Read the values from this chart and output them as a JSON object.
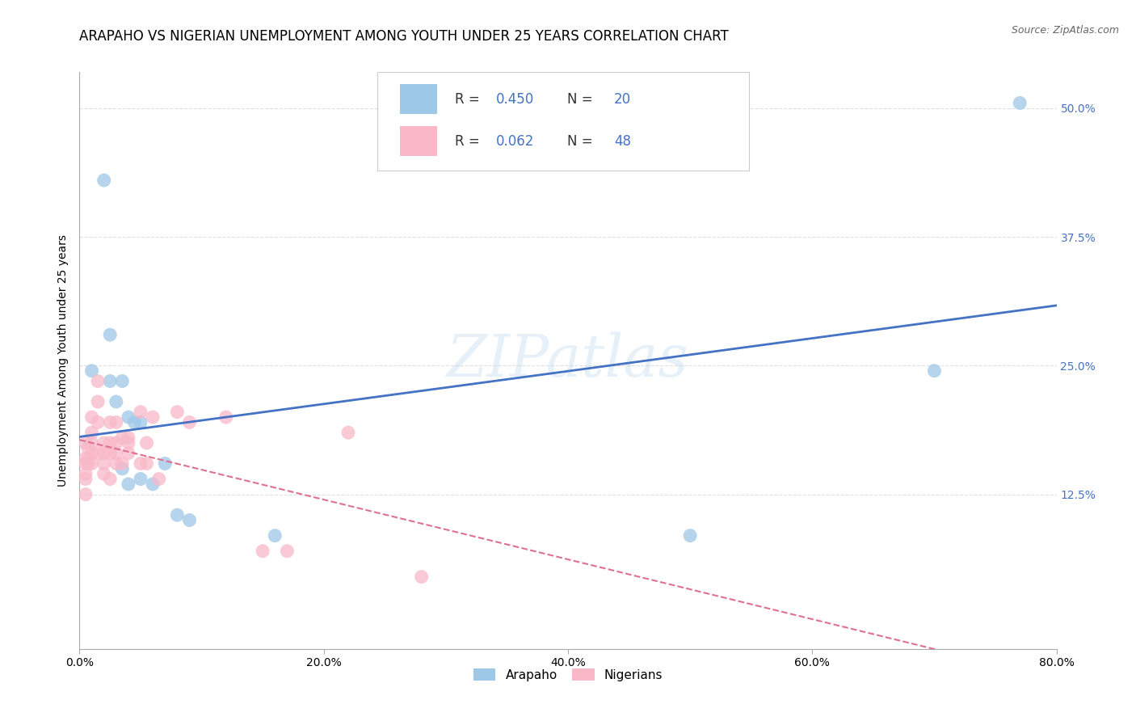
{
  "title": "ARAPAHO VS NIGERIAN UNEMPLOYMENT AMONG YOUTH UNDER 25 YEARS CORRELATION CHART",
  "source": "Source: ZipAtlas.com",
  "ylabel": "Unemployment Among Youth under 25 years",
  "xlim": [
    0.0,
    0.8
  ],
  "ylim": [
    -0.025,
    0.535
  ],
  "arapaho_R": "0.450",
  "arapaho_N": "20",
  "nigerian_R": "0.062",
  "nigerian_N": "48",
  "arapaho_color": "#9ec8e8",
  "nigerian_color": "#f8b8c8",
  "arapaho_line_color": "#4472c4",
  "nigerian_line_color": "#e07090",
  "watermark": "ZIPatlas",
  "arapaho_x": [
    0.01,
    0.02,
    0.025,
    0.025,
    0.03,
    0.035,
    0.035,
    0.04,
    0.04,
    0.045,
    0.05,
    0.05,
    0.06,
    0.07,
    0.08,
    0.09,
    0.16,
    0.5,
    0.7,
    0.77
  ],
  "arapaho_y": [
    0.245,
    0.43,
    0.28,
    0.235,
    0.215,
    0.235,
    0.15,
    0.2,
    0.135,
    0.195,
    0.195,
    0.14,
    0.135,
    0.155,
    0.105,
    0.1,
    0.085,
    0.085,
    0.245,
    0.505
  ],
  "nigerian_x": [
    0.005,
    0.005,
    0.005,
    0.005,
    0.005,
    0.005,
    0.007,
    0.007,
    0.007,
    0.01,
    0.01,
    0.01,
    0.01,
    0.01,
    0.015,
    0.015,
    0.015,
    0.015,
    0.02,
    0.02,
    0.02,
    0.02,
    0.025,
    0.025,
    0.025,
    0.025,
    0.03,
    0.03,
    0.03,
    0.03,
    0.035,
    0.035,
    0.04,
    0.04,
    0.04,
    0.05,
    0.05,
    0.055,
    0.055,
    0.06,
    0.065,
    0.08,
    0.09,
    0.12,
    0.15,
    0.17,
    0.22,
    0.28
  ],
  "nigerian_y": [
    0.175,
    0.16,
    0.155,
    0.145,
    0.14,
    0.125,
    0.17,
    0.16,
    0.155,
    0.2,
    0.185,
    0.175,
    0.165,
    0.155,
    0.235,
    0.215,
    0.195,
    0.165,
    0.175,
    0.165,
    0.155,
    0.145,
    0.195,
    0.175,
    0.165,
    0.14,
    0.195,
    0.175,
    0.165,
    0.155,
    0.18,
    0.155,
    0.18,
    0.175,
    0.165,
    0.205,
    0.155,
    0.175,
    0.155,
    0.2,
    0.14,
    0.205,
    0.195,
    0.2,
    0.07,
    0.07,
    0.185,
    0.045
  ],
  "grid_color": "#e0e0e0",
  "background_color": "#ffffff",
  "title_fontsize": 12,
  "axis_label_fontsize": 10,
  "tick_fontsize": 10,
  "ytick_vals": [
    0.125,
    0.25,
    0.375,
    0.5
  ],
  "ytick_labels": [
    "12.5%",
    "25.0%",
    "37.5%",
    "50.0%"
  ],
  "xtick_vals": [
    0.0,
    0.2,
    0.4,
    0.6,
    0.8
  ],
  "xtick_labels": [
    "0.0%",
    "20.0%",
    "40.0%",
    "60.0%",
    "80.0%"
  ]
}
